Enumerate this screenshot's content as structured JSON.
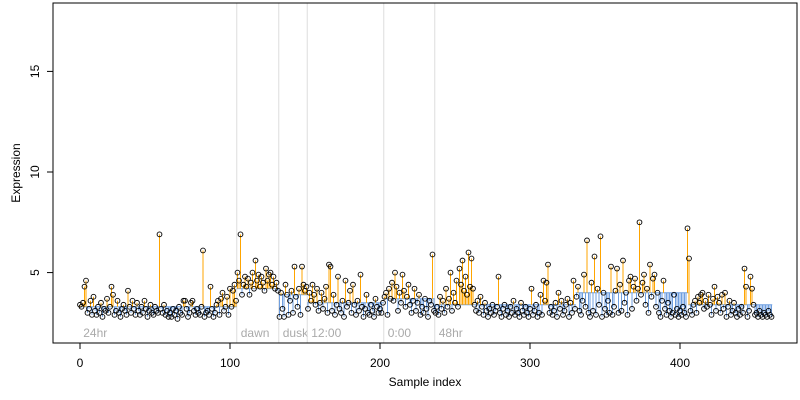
{
  "chart_data": {
    "type": "scatter",
    "xlabel": "Sample index",
    "ylabel": "Expression",
    "xlim": [
      -18,
      478
    ],
    "ylim": [
      1.5,
      18.4
    ],
    "xticks": [
      0,
      100,
      200,
      300,
      400
    ],
    "yticks": [
      5,
      10,
      15
    ],
    "point_color": "#000000",
    "above_color": "#ffa500",
    "below_color": "#6f9fe0",
    "divider_color": "#dddddd",
    "groups": [
      {
        "label": "24hr",
        "start": 0
      },
      {
        "label": "dawn",
        "start": 105
      },
      {
        "label": "dusk",
        "start": 133
      },
      {
        "label": "12:00",
        "start": 152
      },
      {
        "label": "0:00",
        "start": 203
      },
      {
        "label": "48hr",
        "start": 237
      }
    ],
    "baseline": [
      {
        "start": 0,
        "end": 104,
        "level": 3.3
      },
      {
        "start": 105,
        "end": 132,
        "level": 4.2
      },
      {
        "start": 133,
        "end": 151,
        "level": 3.9
      },
      {
        "start": 152,
        "end": 202,
        "level": 3.5
      },
      {
        "start": 203,
        "end": 236,
        "level": 3.7
      },
      {
        "start": 237,
        "end": 330,
        "level": 3.4
      },
      {
        "start": 331,
        "end": 405,
        "level": 4.0
      },
      {
        "start": 406,
        "end": 461,
        "level": 3.4
      }
    ],
    "values": [
      3.4,
      3.3,
      3.5,
      4.3,
      4.6,
      3.0,
      3.2,
      3.6,
      2.9,
      3.8,
      3.1,
      2.9,
      3.3,
      3.0,
      3.5,
      2.8,
      3.2,
      3.1,
      3.7,
      3.0,
      3.3,
      4.3,
      3.9,
      2.9,
      3.1,
      3.6,
      3.0,
      2.8,
      3.2,
      3.4,
      3.1,
      2.9,
      4.1,
      3.3,
      3.0,
      3.6,
      3.2,
      2.9,
      3.5,
      3.1,
      2.9,
      3.3,
      3.0,
      3.6,
      3.2,
      2.8,
      3.1,
      3.4,
      3.0,
      2.9,
      3.3,
      3.1,
      3.0,
      6.9,
      3.2,
      3.0,
      3.4,
      2.9,
      3.1,
      2.8,
      3.0,
      2.8,
      3.2,
      2.9,
      3.1,
      2.7,
      3.3,
      3.0,
      2.9,
      3.6,
      3.6,
      3.2,
      2.8,
      3.0,
      3.5,
      3.6,
      3.1,
      2.9,
      3.2,
      3.0,
      2.9,
      3.3,
      6.1,
      2.8,
      3.0,
      3.1,
      2.9,
      4.3,
      3.2,
      2.8,
      3.0,
      3.4,
      3.6,
      2.9,
      3.7,
      4.0,
      3.1,
      3.3,
      3.8,
      2.9,
      4.2,
      3.3,
      4.1,
      4.4,
      3.6,
      5.0,
      4.6,
      6.9,
      3.9,
      4.4,
      4.8,
      4.3,
      4.7,
      3.9,
      4.5,
      5.0,
      4.2,
      5.6,
      4.6,
      4.9,
      4.3,
      4.8,
      4.5,
      4.1,
      5.2,
      4.6,
      4.9,
      5.0,
      4.4,
      4.8,
      4.2,
      4.5,
      4.1,
      2.8,
      4.0,
      3.2,
      2.8,
      4.4,
      3.9,
      2.9,
      3.6,
      4.1,
      3.0,
      5.3,
      3.8,
      3.3,
      4.2,
      2.9,
      5.3,
      4.4,
      4.1,
      4.3,
      3.2,
      4.0,
      3.6,
      4.4,
      3.9,
      3.4,
      4.2,
      3.1,
      3.5,
      4.0,
      3.2,
      3.7,
      4.3,
      3.0,
      5.4,
      5.3,
      3.1,
      3.9,
      2.9,
      3.4,
      4.8,
      3.2,
      3.0,
      3.6,
      2.8,
      4.6,
      3.3,
      3.5,
      4.1,
      3.0,
      4.4,
      3.4,
      2.9,
      3.6,
      3.1,
      4.9,
      3.3,
      2.8,
      3.2,
      3.9,
      3.0,
      2.9,
      3.4,
      3.1,
      2.8,
      3.7,
      3.3,
      3.0,
      3.2,
      3.0,
      3.5,
      3.8,
      4.0,
      2.9,
      4.2,
      3.7,
      4.5,
      3.6,
      5.0,
      4.3,
      3.1,
      4.0,
      3.5,
      4.9,
      4.1,
      3.3,
      3.8,
      4.4,
      3.4,
      3.0,
      3.6,
      4.2,
      3.1,
      3.5,
      3.9,
      2.9,
      3.3,
      3.0,
      3.7,
      3.2,
      2.8,
      3.6,
      3.4,
      5.9,
      3.1,
      3.0,
      3.3,
      2.9,
      3.8,
      3.2,
      3.6,
      3.0,
      4.2,
      3.3,
      3.7,
      5.0,
      3.1,
      4.0,
      3.5,
      4.6,
      3.3,
      5.2,
      4.4,
      5.6,
      4.1,
      4.8,
      3.9,
      6.0,
      4.3,
      5.7,
      4.2,
      3.4,
      3.1,
      3.6,
      3.0,
      3.8,
      3.3,
      2.9,
      3.5,
      3.1,
      2.8,
      3.2,
      3.0,
      3.4,
      2.9,
      3.1,
      3.3,
      4.8,
      3.0,
      2.8,
      3.2,
      3.4,
      2.9,
      3.1,
      2.8,
      3.3,
      3.0,
      3.6,
      2.9,
      3.2,
      3.0,
      2.8,
      3.5,
      3.1,
      2.9,
      3.3,
      3.0,
      2.8,
      3.2,
      4.2,
      2.9,
      3.1,
      3.4,
      2.8,
      3.0,
      3.9,
      2.9,
      4.6,
      3.6,
      4.5,
      5.4,
      3.0,
      3.3,
      2.9,
      3.1,
      3.5,
      2.8,
      4.0,
      3.2,
      3.6,
      2.9,
      3.1,
      3.4,
      3.7,
      2.8,
      3.5,
      3.0,
      4.6,
      3.2,
      3.8,
      4.3,
      3.1,
      2.9,
      3.6,
      4.9,
      3.3,
      6.6,
      3.0,
      2.8,
      4.5,
      3.1,
      5.8,
      2.9,
      4.2,
      3.4,
      6.8,
      2.8,
      4.0,
      3.2,
      2.9,
      3.6,
      3.0,
      5.3,
      2.9,
      3.3,
      4.1,
      5.2,
      3.0,
      4.4,
      3.1,
      5.6,
      3.5,
      4.0,
      2.9,
      4.6,
      4.8,
      3.2,
      4.3,
      4.7,
      3.6,
      4.2,
      7.5,
      3.9,
      4.5,
      4.9,
      3.4,
      4.2,
      3.0,
      5.4,
      3.8,
      4.7,
      4.9,
      3.3,
      4.0,
      3.0,
      2.8,
      3.6,
      4.6,
      3.2,
      2.9,
      3.5,
      3.1,
      2.8,
      3.0,
      3.9,
      2.9,
      3.2,
      2.8,
      3.1,
      2.9,
      3.3,
      3.0,
      2.8,
      7.2,
      5.7,
      3.1,
      2.9,
      3.4,
      3.6,
      3.0,
      3.8,
      3.5,
      3.9,
      4.0,
      3.2,
      3.6,
      3.3,
      3.9,
      3.4,
      2.9,
      3.7,
      4.3,
      3.1,
      3.8,
      3.5,
      3.0,
      3.9,
      3.2,
      4.0,
      2.8,
      3.3,
      3.6,
      2.9,
      3.1,
      3.5,
      3.0,
      2.8,
      3.2,
      2.9,
      3.3,
      3.0,
      5.2,
      4.3,
      2.8,
      3.1,
      4.8,
      4.2,
      3.4,
      2.9,
      3.0,
      2.8,
      3.1,
      2.9,
      2.8,
      3.0,
      2.9,
      2.8,
      3.1,
      2.9,
      2.8
    ]
  }
}
